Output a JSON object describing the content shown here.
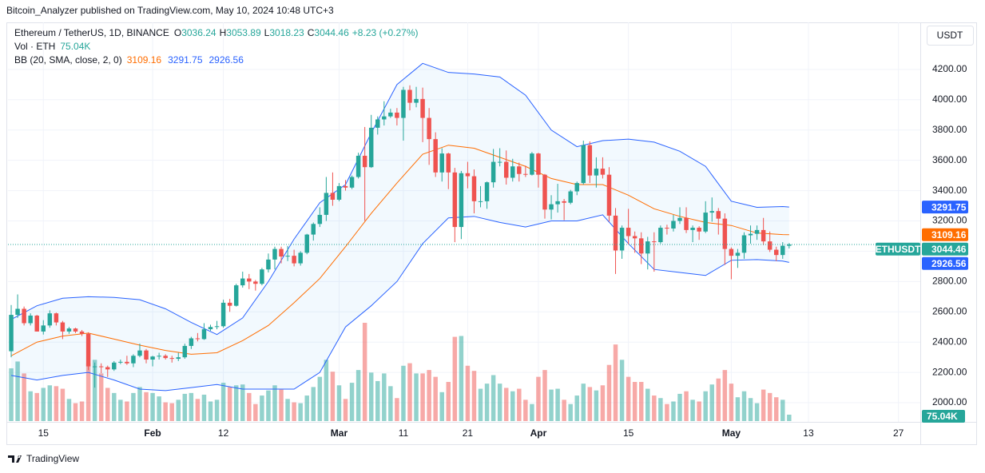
{
  "header": {
    "publisher": "Bitcoin_Analyzer published on TradingView.com, May 10, 2024 10:48 UTC+3",
    "footer": "TradingView"
  },
  "chart_data": {
    "type": "candlestick",
    "title": "Ethereum / TetherUS, 1D, BINANCE",
    "ohlc_letters": [
      "O",
      "H",
      "L",
      "C"
    ],
    "change": "+8.23 (+0.27%)",
    "currency": "USDT",
    "symbol": "ETHUSDT",
    "candles": {
      "up_color": "#26a69a",
      "down_color": "#ef5350",
      "values": [
        [
          2340,
          2645,
          2300,
          2580
        ],
        [
          2580,
          2715,
          2560,
          2620
        ],
        [
          2620,
          2635,
          2510,
          2525
        ],
        [
          2525,
          2590,
          2510,
          2575
        ],
        [
          2575,
          2580,
          2470,
          2470
        ],
        [
          2470,
          2545,
          2450,
          2510
        ],
        [
          2510,
          2610,
          2495,
          2590
        ],
        [
          2590,
          2595,
          2510,
          2530
        ],
        [
          2530,
          2540,
          2420,
          2470
        ],
        [
          2470,
          2500,
          2455,
          2490
        ],
        [
          2490,
          2495,
          2460,
          2470
        ],
        [
          2470,
          2480,
          2440,
          2455
        ],
        [
          2455,
          2465,
          2215,
          2240
        ],
        [
          2240,
          2265,
          2100,
          2240
        ],
        [
          2240,
          2260,
          2195,
          2235
        ],
        [
          2235,
          2245,
          2170,
          2220
        ],
        [
          2220,
          2275,
          2210,
          2265
        ],
        [
          2265,
          2285,
          2255,
          2270
        ],
        [
          2270,
          2310,
          2250,
          2260
        ],
        [
          2260,
          2320,
          2235,
          2310
        ],
        [
          2310,
          2390,
          2300,
          2345
        ],
        [
          2345,
          2355,
          2260,
          2285
        ],
        [
          2285,
          2310,
          2240,
          2305
        ],
        [
          2305,
          2330,
          2285,
          2310
        ],
        [
          2310,
          2320,
          2285,
          2295
        ],
        [
          2295,
          2310,
          2265,
          2290
        ],
        [
          2290,
          2330,
          2275,
          2300
        ],
        [
          2300,
          2390,
          2290,
          2375
        ],
        [
          2375,
          2435,
          2355,
          2425
        ],
        [
          2425,
          2460,
          2405,
          2420
        ],
        [
          2420,
          2525,
          2415,
          2485
        ],
        [
          2485,
          2515,
          2475,
          2500
        ],
        [
          2500,
          2540,
          2485,
          2505
        ],
        [
          2505,
          2680,
          2495,
          2660
        ],
        [
          2660,
          2685,
          2600,
          2640
        ],
        [
          2640,
          2785,
          2635,
          2775
        ],
        [
          2775,
          2865,
          2760,
          2820
        ],
        [
          2820,
          2850,
          2750,
          2800
        ],
        [
          2800,
          2810,
          2740,
          2785
        ],
        [
          2785,
          2890,
          2775,
          2880
        ],
        [
          2880,
          2985,
          2860,
          2945
        ],
        [
          2945,
          3030,
          2880,
          3015
        ],
        [
          3015,
          3030,
          2920,
          2965
        ],
        [
          2965,
          3035,
          2935,
          2970
        ],
        [
          2970,
          3010,
          2900,
          2920
        ],
        [
          2920,
          3000,
          2905,
          2990
        ],
        [
          2990,
          3115,
          2980,
          3110
        ],
        [
          3110,
          3190,
          3070,
          3180
        ],
        [
          3180,
          3290,
          3160,
          3240
        ],
        [
          3240,
          3490,
          3200,
          3385
        ],
        [
          3385,
          3520,
          3300,
          3340
        ],
        [
          3340,
          3450,
          3330,
          3430
        ],
        [
          3430,
          3470,
          3400,
          3420
        ],
        [
          3420,
          3500,
          3410,
          3490
        ],
        [
          3490,
          3650,
          3480,
          3630
        ],
        [
          3630,
          3820,
          3200,
          3555
        ],
        [
          3555,
          3900,
          3550,
          3815
        ],
        [
          3815,
          3890,
          3770,
          3870
        ],
        [
          3870,
          3990,
          3830,
          3890
        ],
        [
          3890,
          3940,
          3880,
          3915
        ],
        [
          3915,
          3945,
          3830,
          3880
        ],
        [
          3880,
          4085,
          3730,
          4065
        ],
        [
          4065,
          4095,
          3930,
          3980
        ],
        [
          3980,
          4085,
          3950,
          4005
        ],
        [
          4005,
          4080,
          3720,
          3880
        ],
        [
          3880,
          3945,
          3570,
          3740
        ],
        [
          3740,
          3785,
          3490,
          3520
        ],
        [
          3520,
          3680,
          3460,
          3645
        ],
        [
          3645,
          3650,
          3410,
          3520
        ],
        [
          3520,
          3550,
          3060,
          3160
        ],
        [
          3160,
          3530,
          3080,
          3515
        ],
        [
          3515,
          3590,
          3415,
          3495
        ],
        [
          3495,
          3540,
          3250,
          3330
        ],
        [
          3330,
          3430,
          3290,
          3330
        ],
        [
          3330,
          3460,
          3280,
          3455
        ],
        [
          3455,
          3675,
          3420,
          3590
        ],
        [
          3590,
          3680,
          3560,
          3590
        ],
        [
          3590,
          3665,
          3440,
          3485
        ],
        [
          3485,
          3610,
          3460,
          3560
        ],
        [
          3560,
          3585,
          3460,
          3510
        ],
        [
          3510,
          3565,
          3490,
          3505
        ],
        [
          3505,
          3655,
          3500,
          3645
        ],
        [
          3645,
          3650,
          3420,
          3505
        ],
        [
          3505,
          3510,
          3215,
          3275
        ],
        [
          3275,
          3370,
          3210,
          3310
        ],
        [
          3310,
          3445,
          3255,
          3330
        ],
        [
          3330,
          3345,
          3205,
          3320
        ],
        [
          3320,
          3405,
          3310,
          3395
        ],
        [
          3395,
          3460,
          3370,
          3450
        ],
        [
          3450,
          3730,
          3440,
          3700
        ],
        [
          3700,
          3725,
          3450,
          3500
        ],
        [
          3500,
          3620,
          3420,
          3545
        ],
        [
          3545,
          3620,
          3480,
          3505
        ],
        [
          3505,
          3555,
          3195,
          3235
        ],
        [
          3235,
          3285,
          2850,
          3005
        ],
        [
          3005,
          3170,
          2950,
          3155
        ],
        [
          3155,
          3280,
          3045,
          3100
        ],
        [
          3100,
          3130,
          2990,
          3085
        ],
        [
          3085,
          3125,
          2915,
          2985
        ],
        [
          2985,
          3095,
          2880,
          3065
        ],
        [
          3065,
          3125,
          2865,
          3060
        ],
        [
          3060,
          3170,
          3050,
          3155
        ],
        [
          3155,
          3175,
          3110,
          3150
        ],
        [
          3150,
          3240,
          3130,
          3200
        ],
        [
          3200,
          3290,
          3180,
          3220
        ],
        [
          3220,
          3290,
          3120,
          3140
        ],
        [
          3140,
          3170,
          3060,
          3155
        ],
        [
          3155,
          3165,
          3075,
          3130
        ],
        [
          3130,
          3330,
          3120,
          3255
        ],
        [
          3255,
          3355,
          3195,
          3265
        ],
        [
          3265,
          3285,
          3110,
          3215
        ],
        [
          3215,
          3250,
          2910,
          3015
        ],
        [
          3015,
          3025,
          2815,
          2970
        ],
        [
          2970,
          3015,
          2890,
          2990
        ],
        [
          2990,
          3125,
          2950,
          3105
        ],
        [
          3105,
          3170,
          3050,
          3115
        ],
        [
          3115,
          3170,
          3075,
          3140
        ],
        [
          3140,
          3220,
          3040,
          3065
        ],
        [
          3065,
          3130,
          2995,
          3010
        ],
        [
          3010,
          3030,
          2935,
          2975
        ],
        [
          2975,
          3060,
          2950,
          3036.24
        ],
        [
          3036.24,
          3053.89,
          3018.23,
          3044.46
        ]
      ]
    },
    "volume": {
      "name": "Vol · ETH",
      "up_color": "rgba(38,166,154,0.5)",
      "down_color": "rgba(239,83,80,0.5)",
      "last_label": "75.04K",
      "values": [
        620,
        700,
        560,
        350,
        330,
        390,
        420,
        410,
        380,
        260,
        210,
        230,
        680,
        720,
        560,
        390,
        330,
        250,
        230,
        330,
        400,
        340,
        330,
        290,
        220,
        210,
        250,
        320,
        330,
        260,
        310,
        230,
        250,
        450,
        400,
        420,
        430,
        330,
        200,
        300,
        360,
        420,
        370,
        260,
        220,
        210,
        300,
        400,
        520,
        720,
        580,
        420,
        260,
        450,
        600,
        1155,
        570,
        470,
        560,
        410,
        270,
        650,
        680,
        560,
        560,
        600,
        520,
        340,
        460,
        990,
        1000,
        650,
        590,
        380,
        440,
        540,
        440,
        390,
        350,
        380,
        250,
        200,
        520,
        600,
        370,
        380,
        250,
        200,
        300,
        440,
        400,
        360,
        420,
        660,
        900,
        720,
        520,
        460,
        460,
        380,
        300,
        270,
        200,
        230,
        320,
        350,
        250,
        230,
        350,
        430,
        500,
        600,
        440,
        280,
        350,
        270,
        210,
        370,
        330,
        280,
        250,
        75.04
      ]
    },
    "bollinger": {
      "name": "BB (20, SMA, close, 2, 0)",
      "fill": "rgba(33,150,243,0.06)",
      "x": [
        0,
        4,
        8,
        12,
        16,
        20,
        24,
        28,
        32,
        36,
        40,
        44,
        48,
        52,
        56,
        60,
        64,
        68,
        72,
        76,
        80,
        84,
        88,
        92,
        96,
        100,
        104,
        108,
        112,
        116,
        120,
        121
      ],
      "series": [
        {
          "color": "#ff6d00",
          "values": [
            2310,
            2400,
            2440,
            2460,
            2420,
            2380,
            2345,
            2320,
            2330,
            2410,
            2510,
            2660,
            2820,
            3030,
            3250,
            3450,
            3640,
            3700,
            3680,
            3620,
            3560,
            3480,
            3440,
            3440,
            3370,
            3280,
            3230,
            3190,
            3170,
            3120,
            3110,
            3109.16
          ]
        },
        {
          "color": "#2962ff",
          "values": [
            2550,
            2640,
            2690,
            2700,
            2695,
            2680,
            2620,
            2530,
            2450,
            2560,
            2800,
            3080,
            3320,
            3440,
            3780,
            4100,
            4240,
            4180,
            4170,
            4150,
            4030,
            3800,
            3690,
            3730,
            3740,
            3720,
            3660,
            3560,
            3330,
            3290,
            3295,
            3291.75
          ]
        },
        {
          "color": "#2962ff",
          "values": [
            2180,
            2150,
            2180,
            2200,
            2150,
            2090,
            2080,
            2100,
            2120,
            2090,
            2090,
            2090,
            2200,
            2500,
            2640,
            2800,
            3050,
            3220,
            3230,
            3190,
            3160,
            3200,
            3200,
            3240,
            3050,
            2880,
            2860,
            2840,
            2940,
            2945,
            2935,
            2926.56
          ]
        }
      ]
    },
    "xlim": [
      -0.5,
      141.4
    ],
    "xticks": [
      {
        "value": 5,
        "label": "15"
      },
      {
        "value": 22,
        "label": "Feb"
      },
      {
        "value": 33,
        "label": "12"
      },
      {
        "value": 51,
        "label": "Mar"
      },
      {
        "value": 61,
        "label": "11"
      },
      {
        "value": 71,
        "label": "21"
      },
      {
        "value": 82,
        "label": "Apr"
      },
      {
        "value": 96,
        "label": "15"
      },
      {
        "value": 112,
        "label": "May"
      },
      {
        "value": 124,
        "label": "13"
      },
      {
        "value": 138,
        "label": "27"
      }
    ],
    "ylim": [
      1879,
      4500
    ],
    "yticks": [
      {
        "value": 2000,
        "label": "2000.00"
      },
      {
        "value": 2200,
        "label": "2200.00"
      },
      {
        "value": 2400,
        "label": "2400.00"
      },
      {
        "value": 2600,
        "label": "2600.00"
      },
      {
        "value": 2800,
        "label": "2800.00"
      },
      {
        "value": 3000,
        "label": "3000.00"
      },
      {
        "value": 3200,
        "label": "3200.00"
      },
      {
        "value": 3400,
        "label": "3400.00"
      },
      {
        "value": 3600,
        "label": "3600.00"
      },
      {
        "value": 3800,
        "label": "3800.00"
      },
      {
        "value": 4000,
        "label": "4000.00"
      },
      {
        "value": 4200,
        "label": "4200.00"
      }
    ],
    "grid": true
  }
}
